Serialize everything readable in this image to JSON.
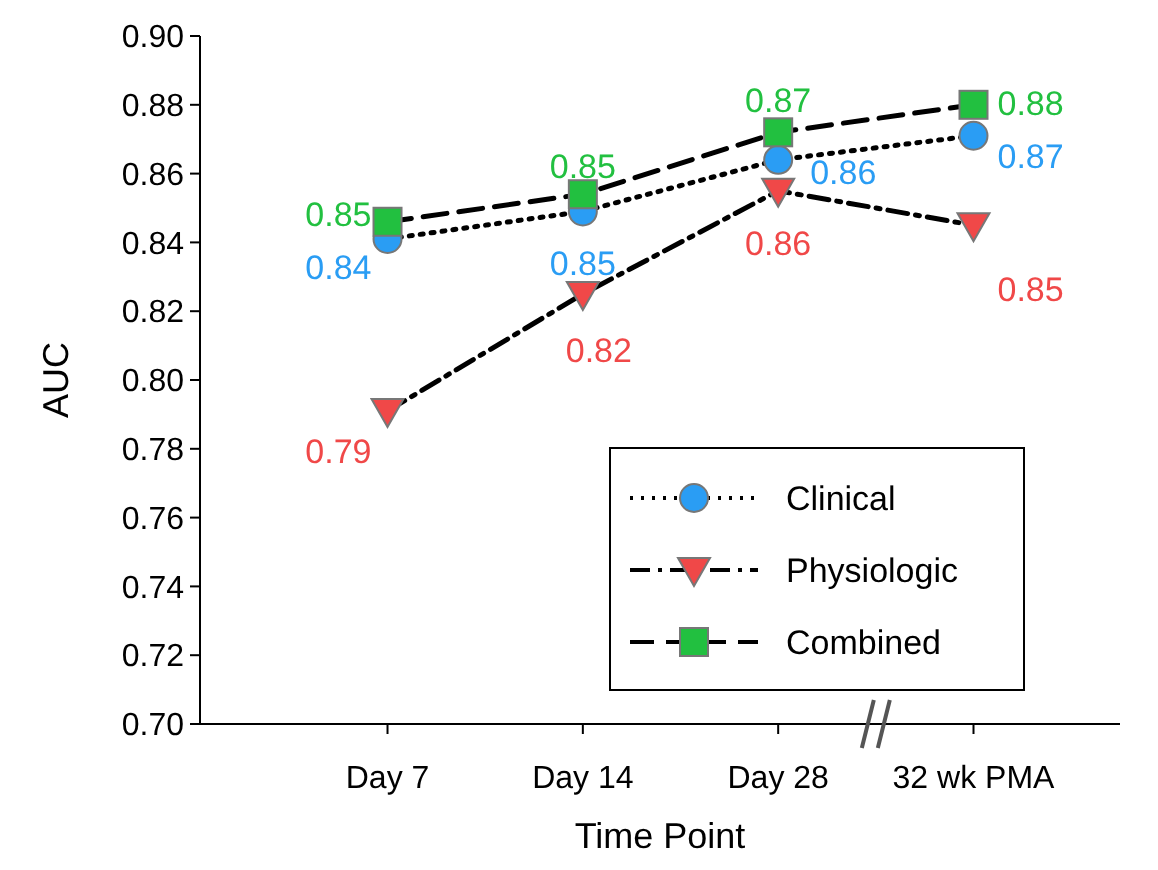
{
  "chart_data": {
    "type": "line",
    "xlabel": "Time Point",
    "ylabel": "AUC",
    "categories": [
      "Day 7",
      "Day 14",
      "Day 28",
      "32 wk PMA"
    ],
    "ylim": [
      0.7,
      0.9
    ],
    "yticks": [
      {
        "value": 0.7,
        "label": "0.70"
      },
      {
        "value": 0.72,
        "label": "0.72"
      },
      {
        "value": 0.74,
        "label": "0.74"
      },
      {
        "value": 0.76,
        "label": "0.76"
      },
      {
        "value": 0.78,
        "label": "0.78"
      },
      {
        "value": 0.8,
        "label": "0.80"
      },
      {
        "value": 0.82,
        "label": "0.82"
      },
      {
        "value": 0.84,
        "label": "0.84"
      },
      {
        "value": 0.86,
        "label": "0.86"
      },
      {
        "value": 0.88,
        "label": "0.88"
      },
      {
        "value": 0.9,
        "label": "0.90"
      }
    ],
    "grid": false,
    "legend": "bottom right",
    "series": [
      {
        "name": "Clinical",
        "color": "#2a9df4",
        "marker": "circle",
        "line_style": "dotted",
        "values": [
          0.841,
          0.849,
          0.864,
          0.871
        ],
        "value_labels": [
          "0.84",
          "0.85",
          "0.86",
          "0.87"
        ]
      },
      {
        "name": "Physiologic",
        "color": "#f04848",
        "marker": "triangle",
        "line_style": "dashdot",
        "values": [
          0.791,
          0.825,
          0.855,
          0.845
        ],
        "value_labels": [
          "0.79",
          "0.82",
          "0.86",
          "0.85"
        ]
      },
      {
        "name": "Combined",
        "color": "#22c040",
        "marker": "square",
        "line_style": "dashed",
        "values": [
          0.846,
          0.854,
          0.872,
          0.88
        ],
        "value_labels": [
          "0.85",
          "0.85",
          "0.87",
          "0.88"
        ]
      }
    ]
  }
}
